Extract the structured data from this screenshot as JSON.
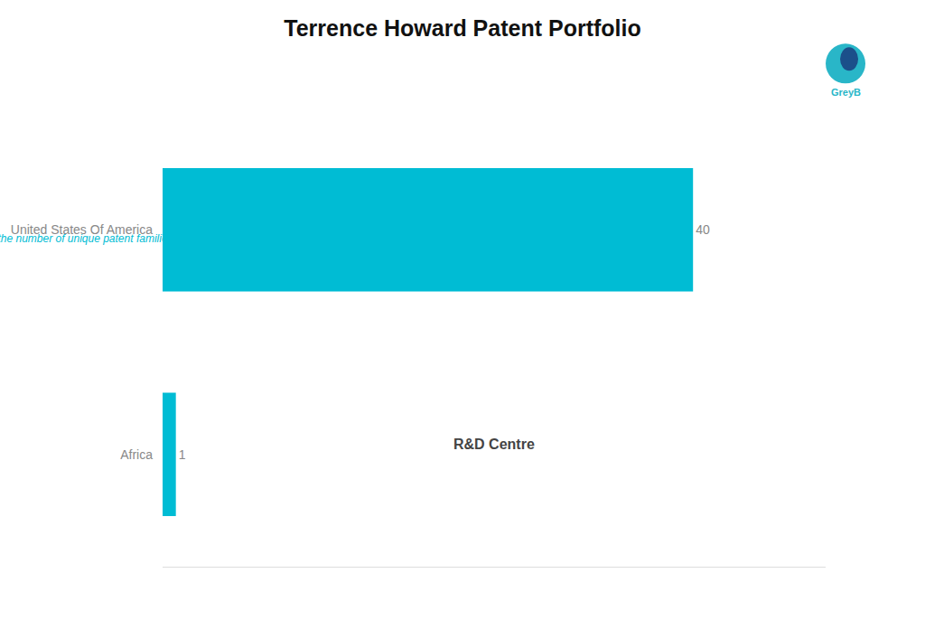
{
  "chart_data": {
    "type": "bar",
    "orientation": "horizontal",
    "title": "Terrence Howard Patent Portfolio",
    "subtitle": "R&D Centre",
    "categories": [
      "United States Of America",
      "Africa"
    ],
    "values": [
      40,
      1
    ],
    "color": "#00BCD4",
    "xlim": [
      0,
      50
    ],
    "data_labels": true,
    "tick_labels": "y",
    "grid": false,
    "annotations": [
      "Note: The patent count represents the number of unique patent families",
      "GreyB"
    ]
  }
}
